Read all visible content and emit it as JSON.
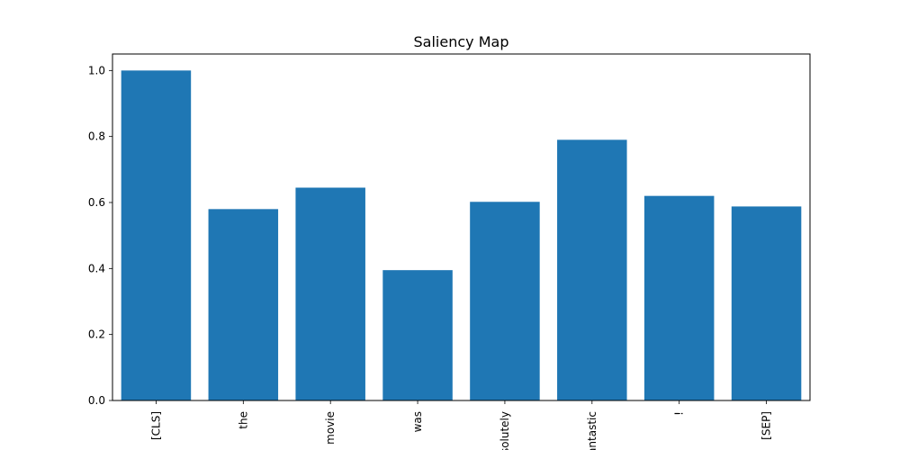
{
  "chart_data": {
    "type": "bar",
    "title": "Saliency Map",
    "xlabel": "",
    "ylabel": "",
    "categories": [
      "[CLS]",
      "the",
      "movie",
      "was",
      "absolutely",
      "fantastic",
      "!",
      "[SEP]"
    ],
    "values": [
      1.0,
      0.58,
      0.645,
      0.395,
      0.602,
      0.79,
      0.62,
      0.588
    ],
    "ylim": [
      0,
      1.05
    ],
    "yticks": [
      0.0,
      0.2,
      0.4,
      0.6,
      0.8,
      1.0
    ],
    "ytick_labels": [
      "0.0",
      "0.2",
      "0.4",
      "0.6",
      "0.8",
      "1.0"
    ],
    "grid": false,
    "bar_color": "#1f77b4"
  }
}
